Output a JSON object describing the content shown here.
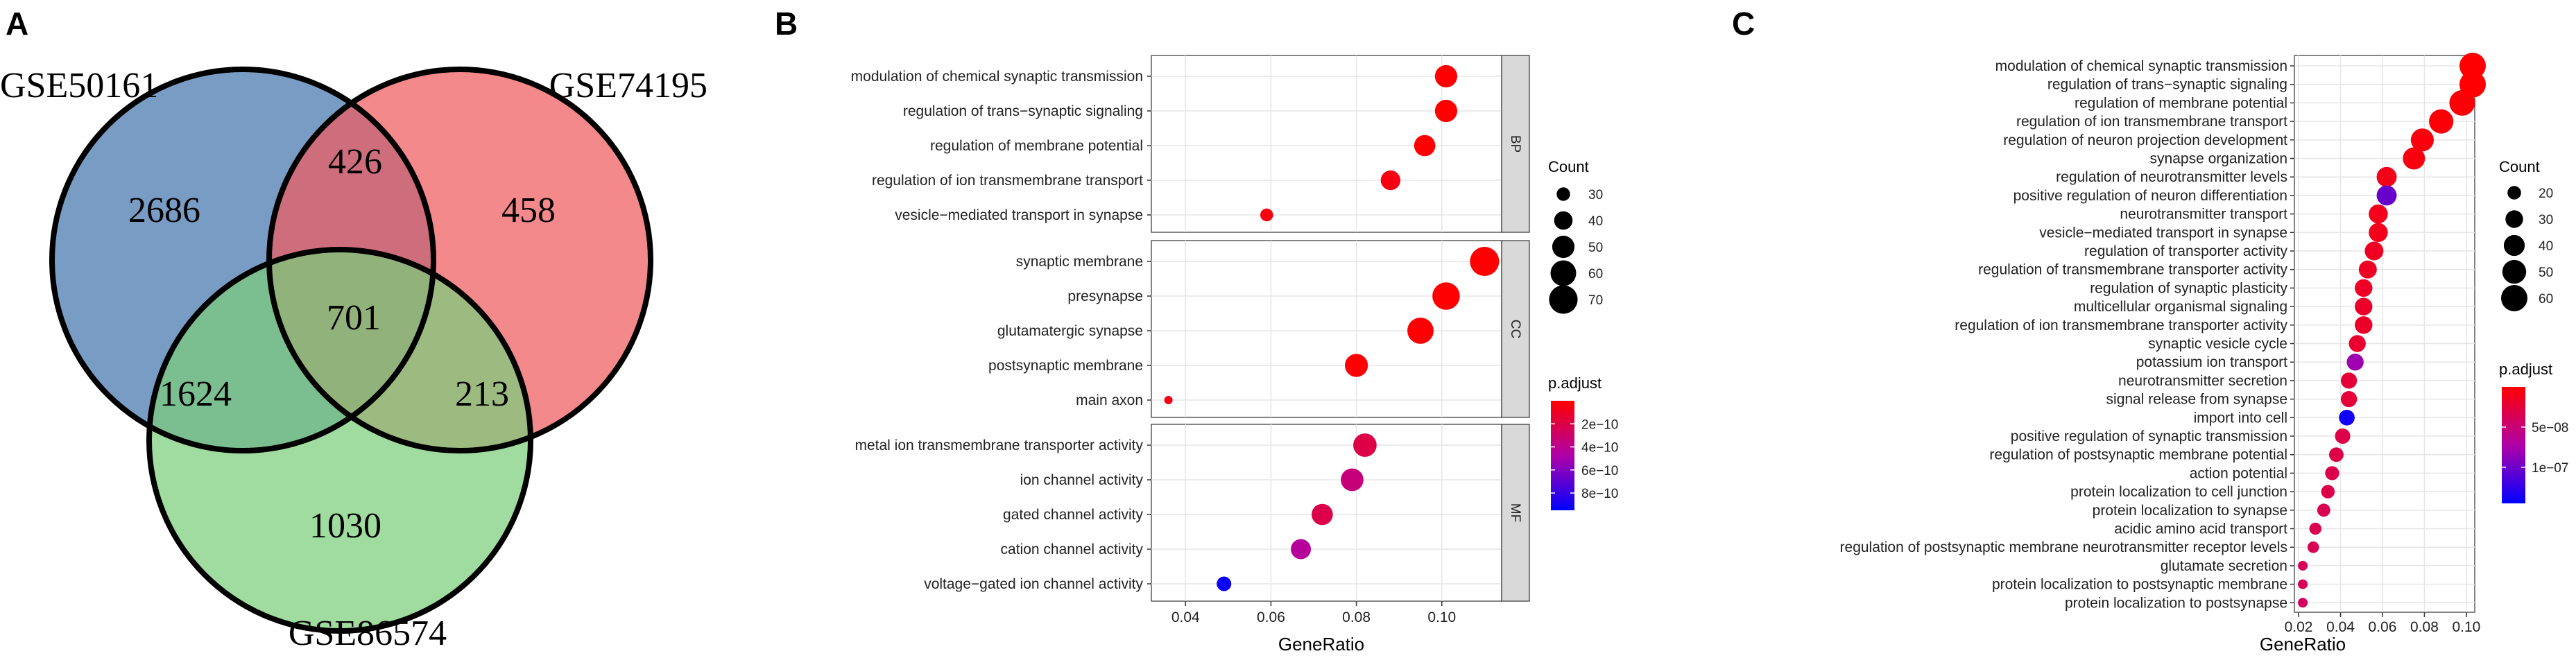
{
  "chart_data": [
    {
      "type": "venn",
      "panel_label": "A",
      "sets": [
        {
          "name": "GSE50161",
          "color": "#5b86b8"
        },
        {
          "name": "GSE74195",
          "color": "#ef5b5e"
        },
        {
          "name": "GSE86574",
          "color": "#7ccd7c"
        }
      ],
      "regions": {
        "only_50161": 2686,
        "only_74195": 458,
        "only_86574": 1030,
        "50161_74195": 426,
        "50161_86574": 1624,
        "74195_86574": 213,
        "all_three": 701
      }
    },
    {
      "type": "dotplot",
      "panel_label": "B",
      "xlabel": "GeneRatio",
      "xlim": [
        0.032,
        0.114
      ],
      "xticks": [
        "0.04",
        "0.06",
        "0.08",
        "0.10"
      ],
      "xtick_values": [
        0.04,
        0.06,
        0.08,
        0.1
      ],
      "facets": [
        {
          "label": "BP",
          "terms": [
            {
              "term": "modulation of chemical synaptic transmission",
              "ratio": 0.101,
              "count": 50,
              "padj": 1e-12
            },
            {
              "term": "regulation of trans−synaptic signaling",
              "ratio": 0.101,
              "count": 50,
              "padj": 1e-12
            },
            {
              "term": "regulation of membrane potential",
              "ratio": 0.096,
              "count": 47,
              "padj": 5e-12
            },
            {
              "term": "regulation of ion transmembrane transport",
              "ratio": 0.088,
              "count": 43,
              "padj": 5e-11
            },
            {
              "term": "vesicle−mediated transport in synapse",
              "ratio": 0.059,
              "count": 29,
              "padj": 4e-11
            }
          ]
        },
        {
          "label": "CC",
          "terms": [
            {
              "term": "synaptic membrane",
              "ratio": 0.11,
              "count": 72,
              "padj": 1e-13
            },
            {
              "term": "presynapse",
              "ratio": 0.101,
              "count": 66,
              "padj": 3e-12
            },
            {
              "term": "glutamatergic synapse",
              "ratio": 0.095,
              "count": 62,
              "padj": 5e-12
            },
            {
              "term": "postsynaptic membrane",
              "ratio": 0.08,
              "count": 52,
              "padj": 8e-12
            },
            {
              "term": "main axon",
              "ratio": 0.036,
              "count": 23,
              "padj": 6e-11
            }
          ]
        },
        {
          "label": "MF",
          "terms": [
            {
              "term": "metal ion transmembrane transporter activity",
              "ratio": 0.082,
              "count": 53,
              "padj": 2e-10
            },
            {
              "term": "ion channel activity",
              "ratio": 0.079,
              "count": 51,
              "padj": 3.4e-10
            },
            {
              "term": "gated channel activity",
              "ratio": 0.072,
              "count": 47,
              "padj": 2.1e-10
            },
            {
              "term": "cation channel activity",
              "ratio": 0.067,
              "count": 44,
              "padj": 4.4e-10
            },
            {
              "term": "voltage−gated ion channel activity",
              "ratio": 0.049,
              "count": 32,
              "padj": 9.2e-10
            }
          ]
        }
      ],
      "size_legend": {
        "title": "Count",
        "values": [
          30,
          40,
          50,
          60,
          70
        ],
        "range": [
          23,
          72
        ]
      },
      "color_legend": {
        "title": "p.adjust",
        "range": [
          0,
          9.5e-10
        ],
        "ticks": [
          2e-10,
          4e-10,
          6e-10,
          8e-10
        ],
        "tick_labels": [
          "2e−10",
          "4e−10",
          "6e−10",
          "8e−10"
        ],
        "low_color": "#ff0000",
        "high_color": "#0000ff"
      }
    },
    {
      "type": "dotplot",
      "panel_label": "C",
      "xlabel": "GeneRatio",
      "xlim": [
        0.018,
        0.104
      ],
      "xticks": [
        "0.02",
        "0.04",
        "0.06",
        "0.08",
        "0.10"
      ],
      "xtick_values": [
        0.02,
        0.04,
        0.06,
        0.08,
        0.1
      ],
      "terms": [
        {
          "term": "modulation of chemical synaptic transmission",
          "ratio": 0.103,
          "count": 60,
          "padj": 1e-09
        },
        {
          "term": "regulation of trans−synaptic signaling",
          "ratio": 0.103,
          "count": 60,
          "padj": 1e-09
        },
        {
          "term": "regulation of membrane potential",
          "ratio": 0.098,
          "count": 57,
          "padj": 2e-09
        },
        {
          "term": "regulation of ion transmembrane transport",
          "ratio": 0.088,
          "count": 52,
          "padj": 3e-09
        },
        {
          "term": "regulation of neuron projection development",
          "ratio": 0.079,
          "count": 47,
          "padj": 5e-09
        },
        {
          "term": "synapse organization",
          "ratio": 0.075,
          "count": 44,
          "padj": 6e-09
        },
        {
          "term": "regulation of neurotransmitter levels",
          "ratio": 0.062,
          "count": 37,
          "padj": 1e-08
        },
        {
          "term": "positive regulation of neuron differentiation",
          "ratio": 0.062,
          "count": 37,
          "padj": 1.02e-07
        },
        {
          "term": "neurotransmitter transport",
          "ratio": 0.058,
          "count": 34,
          "padj": 1.2e-08
        },
        {
          "term": "vesicle−mediated transport in synapse",
          "ratio": 0.058,
          "count": 34,
          "padj": 1.2e-08
        },
        {
          "term": "regulation of transporter activity",
          "ratio": 0.056,
          "count": 33,
          "padj": 1.5e-08
        },
        {
          "term": "regulation of transmembrane transporter activity",
          "ratio": 0.053,
          "count": 31,
          "padj": 1.6e-08
        },
        {
          "term": "regulation of synaptic plasticity",
          "ratio": 0.051,
          "count": 30,
          "padj": 1.6e-08
        },
        {
          "term": "multicellular organismal signaling",
          "ratio": 0.051,
          "count": 30,
          "padj": 1.8e-08
        },
        {
          "term": "regulation of ion transmembrane transporter activity",
          "ratio": 0.051,
          "count": 30,
          "padj": 1.8e-08
        },
        {
          "term": "synaptic vesicle cycle",
          "ratio": 0.048,
          "count": 28,
          "padj": 2e-08
        },
        {
          "term": "potassium ion transport",
          "ratio": 0.047,
          "count": 28,
          "padj": 8e-08
        },
        {
          "term": "neurotransmitter secretion",
          "ratio": 0.044,
          "count": 26,
          "padj": 2.4e-08
        },
        {
          "term": "signal release from synapse",
          "ratio": 0.044,
          "count": 26,
          "padj": 2.4e-08
        },
        {
          "term": "import into cell",
          "ratio": 0.043,
          "count": 25,
          "padj": 1.38e-07
        },
        {
          "term": "positive regulation of synaptic transmission",
          "ratio": 0.041,
          "count": 24,
          "padj": 3e-08
        },
        {
          "term": "regulation of postsynaptic membrane potential",
          "ratio": 0.038,
          "count": 22,
          "padj": 3e-08
        },
        {
          "term": "action potential",
          "ratio": 0.036,
          "count": 21,
          "padj": 3.2e-08
        },
        {
          "term": "protein localization to cell junction",
          "ratio": 0.034,
          "count": 20,
          "padj": 3.2e-08
        },
        {
          "term": "protein localization to synapse",
          "ratio": 0.032,
          "count": 19,
          "padj": 3.5e-08
        },
        {
          "term": "acidic amino acid transport",
          "ratio": 0.028,
          "count": 17,
          "padj": 3.5e-08
        },
        {
          "term": "regulation of postsynaptic membrane neurotransmitter receptor levels",
          "ratio": 0.027,
          "count": 16,
          "padj": 3.6e-08
        },
        {
          "term": "glutamate secretion",
          "ratio": 0.022,
          "count": 13,
          "padj": 3.8e-08
        },
        {
          "term": "protein localization to postsynaptic membrane",
          "ratio": 0.022,
          "count": 13,
          "padj": 3.8e-08
        },
        {
          "term": "protein localization to postsynapse",
          "ratio": 0.022,
          "count": 13,
          "padj": 4e-08
        }
      ],
      "size_legend": {
        "title": "Count",
        "values": [
          20,
          30,
          40,
          50,
          60
        ],
        "range": [
          13,
          60
        ]
      },
      "color_legend": {
        "title": "p.adjust",
        "range": [
          0,
          1.45e-07
        ],
        "ticks": [
          5e-08,
          1e-07
        ],
        "tick_labels": [
          "5e−08",
          "1e−07"
        ],
        "low_color": "#ff0000",
        "high_color": "#0000ff"
      }
    }
  ]
}
